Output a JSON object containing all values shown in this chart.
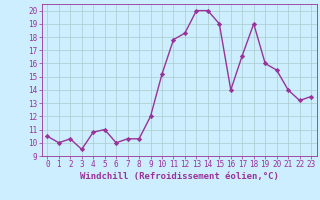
{
  "x": [
    0,
    1,
    2,
    3,
    4,
    5,
    6,
    7,
    8,
    9,
    10,
    11,
    12,
    13,
    14,
    15,
    16,
    17,
    18,
    19,
    20,
    21,
    22,
    23
  ],
  "y": [
    10.5,
    10.0,
    10.3,
    9.5,
    10.8,
    11.0,
    10.0,
    10.3,
    10.3,
    12.0,
    15.2,
    17.8,
    18.3,
    20.0,
    20.0,
    19.0,
    14.0,
    16.6,
    19.0,
    16.0,
    15.5,
    14.0,
    13.2,
    13.5
  ],
  "line_color": "#993399",
  "marker": "D",
  "marker_size": 2.2,
  "linewidth": 1.0,
  "xlabel": "Windchill (Refroidissement éolien,°C)",
  "xlabel_fontsize": 6.5,
  "xlim": [
    -0.5,
    23.5
  ],
  "ylim": [
    9,
    20.5
  ],
  "yticks": [
    9,
    10,
    11,
    12,
    13,
    14,
    15,
    16,
    17,
    18,
    19,
    20
  ],
  "xticks": [
    0,
    1,
    2,
    3,
    4,
    5,
    6,
    7,
    8,
    9,
    10,
    11,
    12,
    13,
    14,
    15,
    16,
    17,
    18,
    19,
    20,
    21,
    22,
    23
  ],
  "background_color": "#cceeff",
  "grid_color": "#aacccc",
  "tick_fontsize": 5.5,
  "color": "#993399"
}
